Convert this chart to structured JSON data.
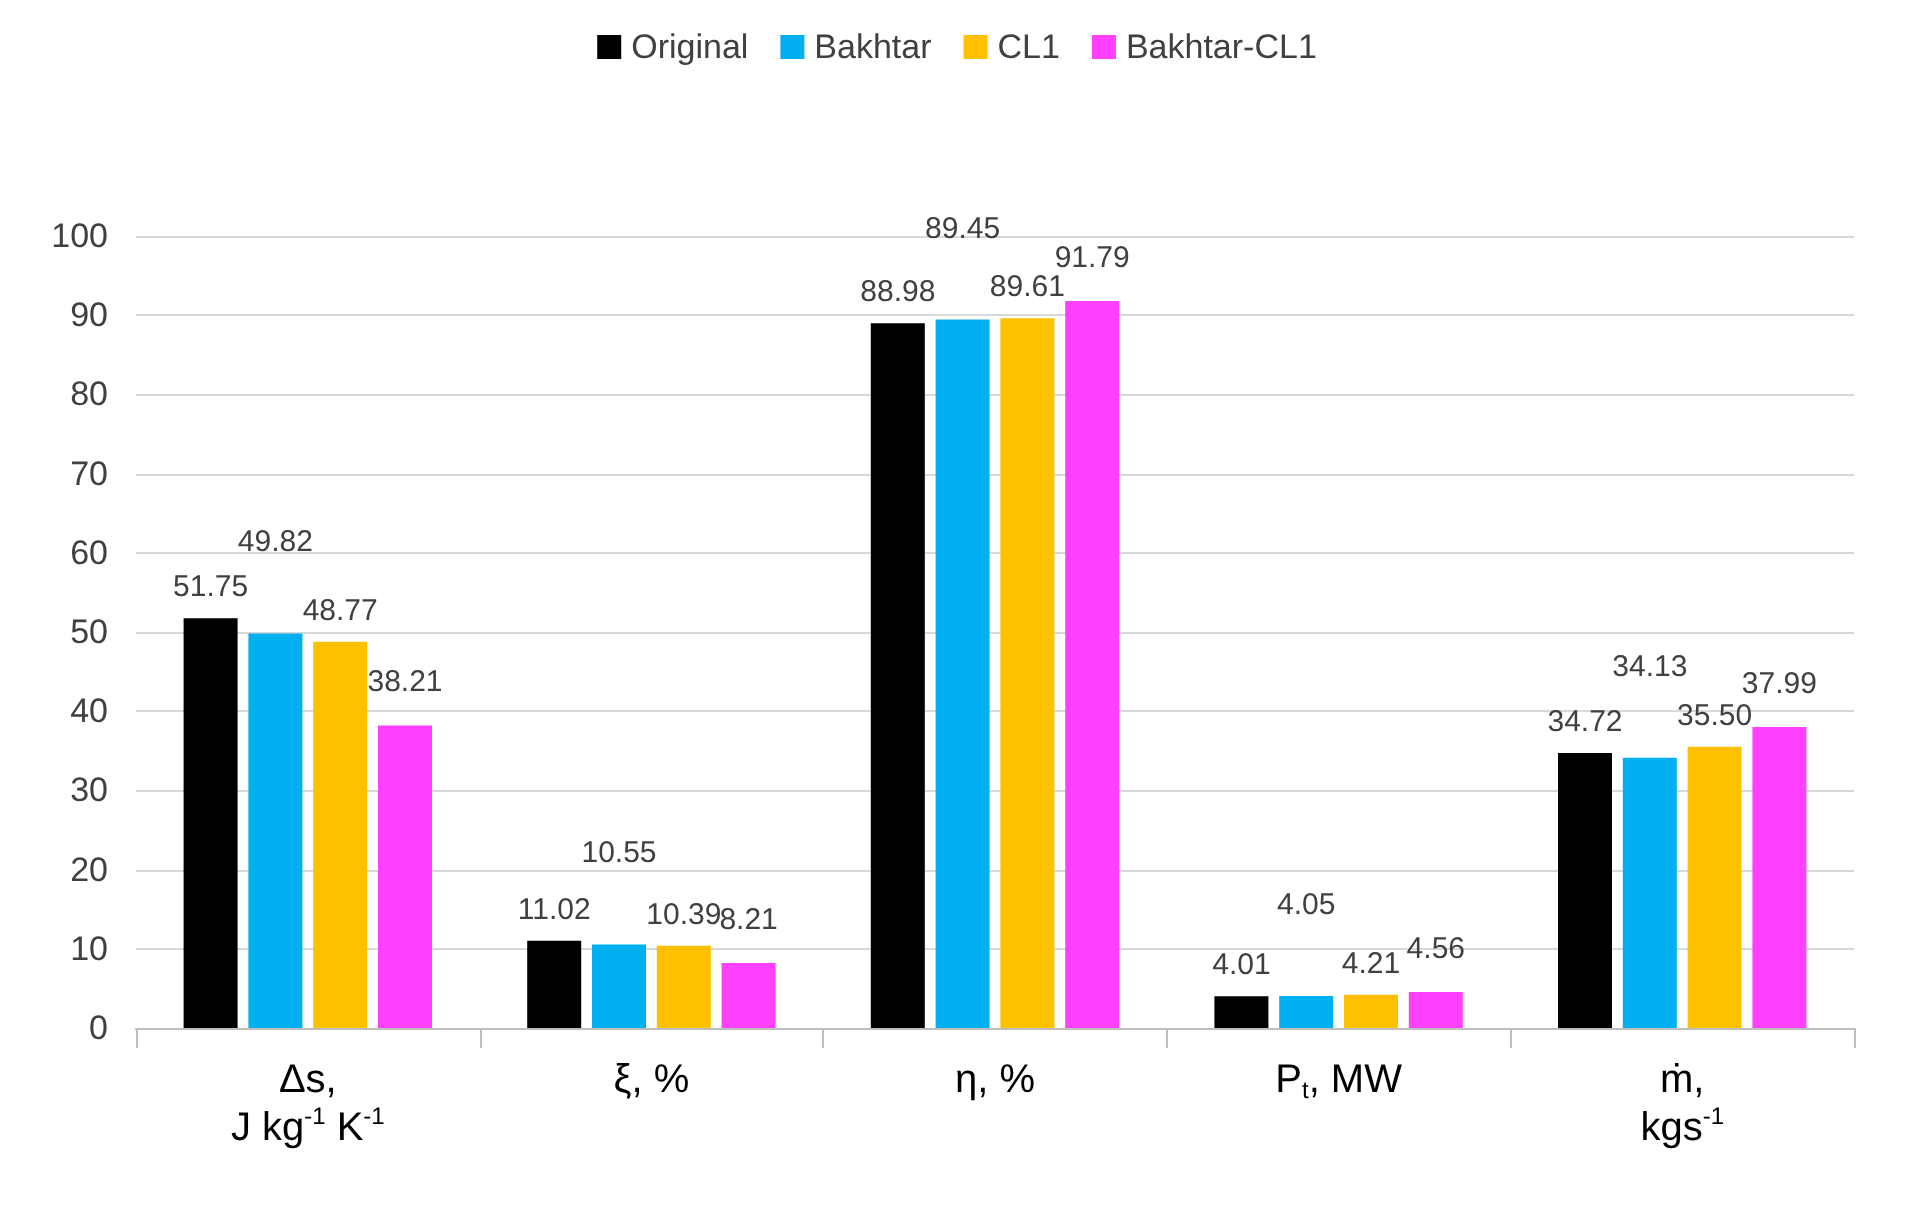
{
  "chart_data": {
    "type": "bar",
    "categories": [
      "Δs,\nJ kg$^{-1}$ K$^{-1}$",
      "ξ, %",
      "η, %",
      "P$_{t}$, MW",
      "ṁ,\nkgs$^{-1}$"
    ],
    "series": [
      {
        "name": "Original",
        "color": "#000000",
        "values": [
          51.75,
          11.02,
          88.98,
          4.01,
          34.72
        ],
        "value_labels": [
          "51.75",
          "11.02",
          "88.98",
          "4.01",
          "34.72"
        ]
      },
      {
        "name": "Bakhtar",
        "color": "#00b0f0",
        "values": [
          49.82,
          10.55,
          89.45,
          4.05,
          34.13
        ],
        "value_labels": [
          "49.82",
          "10.55",
          "89.45",
          "4.05",
          "34.13"
        ]
      },
      {
        "name": "CL1",
        "color": "#ffc000",
        "values": [
          48.77,
          10.39,
          89.61,
          4.21,
          35.5
        ],
        "value_labels": [
          "48.77",
          "10.39",
          "89.61",
          "4.21",
          "35.50"
        ]
      },
      {
        "name": "Bakhtar-CL1",
        "color": "#ff40ff",
        "values": [
          38.21,
          8.21,
          91.79,
          4.56,
          37.99
        ],
        "value_labels": [
          "38.21",
          "8.21",
          "91.79",
          "4.56",
          "37.99"
        ]
      }
    ],
    "ylim": [
      0,
      100
    ],
    "yticks": [
      0,
      10,
      20,
      30,
      40,
      50,
      60,
      70,
      80,
      90,
      100
    ],
    "grid": "y",
    "legend": "top"
  }
}
